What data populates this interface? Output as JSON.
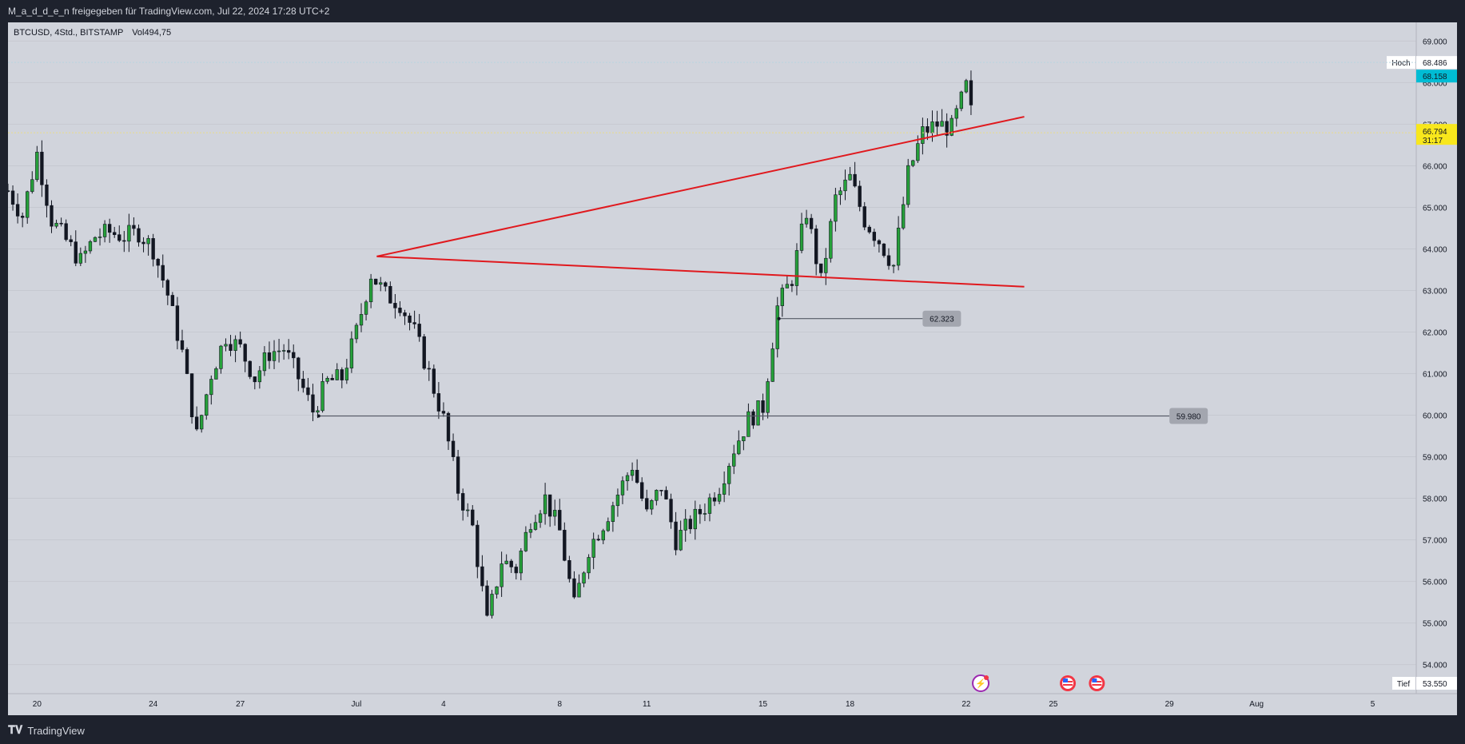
{
  "header": {
    "share_text": "M_a_d_d_e_n freigegeben für TradingView.com, Jul 22, 2024 17:28 UTC+2"
  },
  "legend": {
    "symbol": "BTCUSD, 4Std., BITSTAMP",
    "vol_label": "Vol",
    "vol_value": "494,75"
  },
  "footer": {
    "brand": "TradingView",
    "logo_icon": "tradingview-logo-icon"
  },
  "colors": {
    "background": "#1e222d",
    "plot": "#d1d4dc",
    "up": "#26a13a",
    "down": "#131722",
    "trendline": "#e0191e",
    "level_line": "#555a66",
    "high_badge": "#00bcd4",
    "last_badge": "#f8e71c"
  },
  "chart_data": {
    "type": "candlestick",
    "y_ticks": [
      "69.000",
      "68.000",
      "67.000",
      "66.000",
      "65.000",
      "64.000",
      "63.000",
      "62.000",
      "61.000",
      "60.000",
      "59.000",
      "58.000",
      "57.000",
      "56.000",
      "55.000",
      "54.000"
    ],
    "y_tick_values": [
      69000,
      68000,
      67000,
      66000,
      65000,
      64000,
      63000,
      62000,
      61000,
      60000,
      59000,
      58000,
      57000,
      56000,
      55000,
      54000
    ],
    "ylim": [
      53300,
      69450
    ],
    "x_ticks": [
      {
        "label": "20",
        "date": "2024-06-20"
      },
      {
        "label": "24",
        "date": "2024-06-24"
      },
      {
        "label": "27",
        "date": "2024-06-27"
      },
      {
        "label": "Jul",
        "date": "2024-07-01"
      },
      {
        "label": "4",
        "date": "2024-07-04"
      },
      {
        "label": "8",
        "date": "2024-07-08"
      },
      {
        "label": "11",
        "date": "2024-07-11"
      },
      {
        "label": "15",
        "date": "2024-07-15"
      },
      {
        "label": "18",
        "date": "2024-07-18"
      },
      {
        "label": "22",
        "date": "2024-07-22"
      },
      {
        "label": "25",
        "date": "2024-07-25"
      },
      {
        "label": "29",
        "date": "2024-07-29"
      },
      {
        "label": "Aug",
        "date": "2024-08-01"
      },
      {
        "label": "5",
        "date": "2024-08-05"
      }
    ],
    "price_path": [
      {
        "date": "2024-06-19",
        "price": 65400
      },
      {
        "date": "2024-06-19.5",
        "price": 64800
      },
      {
        "date": "2024-06-20",
        "price": 66300
      },
      {
        "date": "2024-06-20.5",
        "price": 64700
      },
      {
        "date": "2024-06-21",
        "price": 64200
      },
      {
        "date": "2024-06-21.5",
        "price": 63700
      },
      {
        "date": "2024-06-22",
        "price": 64300
      },
      {
        "date": "2024-06-22.5",
        "price": 64400
      },
      {
        "date": "2024-06-23",
        "price": 64300
      },
      {
        "date": "2024-06-23.5",
        "price": 64400
      },
      {
        "date": "2024-06-24",
        "price": 64000
      },
      {
        "date": "2024-06-24.5",
        "price": 62900
      },
      {
        "date": "2024-06-25",
        "price": 61500
      },
      {
        "date": "2024-06-25.5",
        "price": 59500
      },
      {
        "date": "2024-06-26",
        "price": 61000
      },
      {
        "date": "2024-06-26.5",
        "price": 61900
      },
      {
        "date": "2024-06-27",
        "price": 61600
      },
      {
        "date": "2024-06-27.5",
        "price": 60900
      },
      {
        "date": "2024-06-28",
        "price": 61500
      },
      {
        "date": "2024-06-28.5",
        "price": 61600
      },
      {
        "date": "2024-06-29",
        "price": 60900
      },
      {
        "date": "2024-06-29.5",
        "price": 60100
      },
      {
        "date": "2024-06-30",
        "price": 60800
      },
      {
        "date": "2024-06-30.5",
        "price": 60900
      },
      {
        "date": "2024-07-01",
        "price": 62000
      },
      {
        "date": "2024-07-01.5",
        "price": 63400
      },
      {
        "date": "2024-07-02",
        "price": 62900
      },
      {
        "date": "2024-07-02.5",
        "price": 62700
      },
      {
        "date": "2024-07-03",
        "price": 62000
      },
      {
        "date": "2024-07-03.5",
        "price": 61000
      },
      {
        "date": "2024-07-04",
        "price": 59900
      },
      {
        "date": "2024-07-04.5",
        "price": 58200
      },
      {
        "date": "2024-07-05",
        "price": 57300
      },
      {
        "date": "2024-07-05.5",
        "price": 55000
      },
      {
        "date": "2024-07-06",
        "price": 56500
      },
      {
        "date": "2024-07-06.5",
        "price": 56300
      },
      {
        "date": "2024-07-07",
        "price": 57500
      },
      {
        "date": "2024-07-07.5",
        "price": 58000
      },
      {
        "date": "2024-07-08",
        "price": 57200
      },
      {
        "date": "2024-07-08.5",
        "price": 55400
      },
      {
        "date": "2024-07-09",
        "price": 56800
      },
      {
        "date": "2024-07-09.5",
        "price": 57400
      },
      {
        "date": "2024-07-10",
        "price": 58100
      },
      {
        "date": "2024-07-10.5",
        "price": 58800
      },
      {
        "date": "2024-07-11",
        "price": 57600
      },
      {
        "date": "2024-07-11.5",
        "price": 58300
      },
      {
        "date": "2024-07-12",
        "price": 57000
      },
      {
        "date": "2024-07-12.5",
        "price": 57400
      },
      {
        "date": "2024-07-13",
        "price": 57800
      },
      {
        "date": "2024-07-13.5",
        "price": 58300
      },
      {
        "date": "2024-07-14",
        "price": 59200
      },
      {
        "date": "2024-07-14.5",
        "price": 59900
      },
      {
        "date": "2024-07-15",
        "price": 60200
      },
      {
        "date": "2024-07-15.5",
        "price": 62600
      },
      {
        "date": "2024-07-16",
        "price": 63300
      },
      {
        "date": "2024-07-16.5",
        "price": 64900
      },
      {
        "date": "2024-07-17",
        "price": 63200
      },
      {
        "date": "2024-07-17.5",
        "price": 65200
      },
      {
        "date": "2024-07-18",
        "price": 65700
      },
      {
        "date": "2024-07-18.5",
        "price": 64700
      },
      {
        "date": "2024-07-19",
        "price": 64200
      },
      {
        "date": "2024-07-19.5",
        "price": 63600
      },
      {
        "date": "2024-07-20",
        "price": 65800
      },
      {
        "date": "2024-07-20.5",
        "price": 66800
      },
      {
        "date": "2024-07-21",
        "price": 67000
      },
      {
        "date": "2024-07-21.5",
        "price": 66900
      },
      {
        "date": "2024-07-22",
        "price": 67900
      },
      {
        "date": "2024-07-22.3",
        "price": 66800
      }
    ],
    "trendlines": [
      {
        "from": {
          "date": "2024-07-01.7",
          "price": 63820
        },
        "to": {
          "date": "2024-07-24",
          "price": 67180
        }
      },
      {
        "from": {
          "date": "2024-07-01.7",
          "price": 63820
        },
        "to": {
          "date": "2024-07-24",
          "price": 63090
        }
      }
    ],
    "levels": [
      {
        "label": "62.323",
        "price": 62323,
        "from": "2024-07-15.55",
        "to": "2024-07-20.5"
      },
      {
        "label": "59.980",
        "price": 59980,
        "from": "2024-06-29.7",
        "to": "2024-07-29"
      }
    ],
    "price_axis_labels": {
      "high_label": "Hoch",
      "high_value": "68.486",
      "high_price": 68486,
      "current_value": "68.158",
      "current_price": 68158,
      "last_value": "66.794",
      "countdown": "31:17",
      "last_price": 66794,
      "low_label": "Tief",
      "low_value": "53.550",
      "low_price": 53550
    },
    "event_markers": [
      {
        "type": "flash",
        "icon": "lightning-icon",
        "date": "2024-07-22.5"
      },
      {
        "type": "us-economic",
        "icon": "us-flag-icon",
        "date": "2024-07-25.5"
      },
      {
        "type": "us-economic",
        "icon": "us-flag-icon",
        "date": "2024-07-26.5"
      }
    ]
  }
}
